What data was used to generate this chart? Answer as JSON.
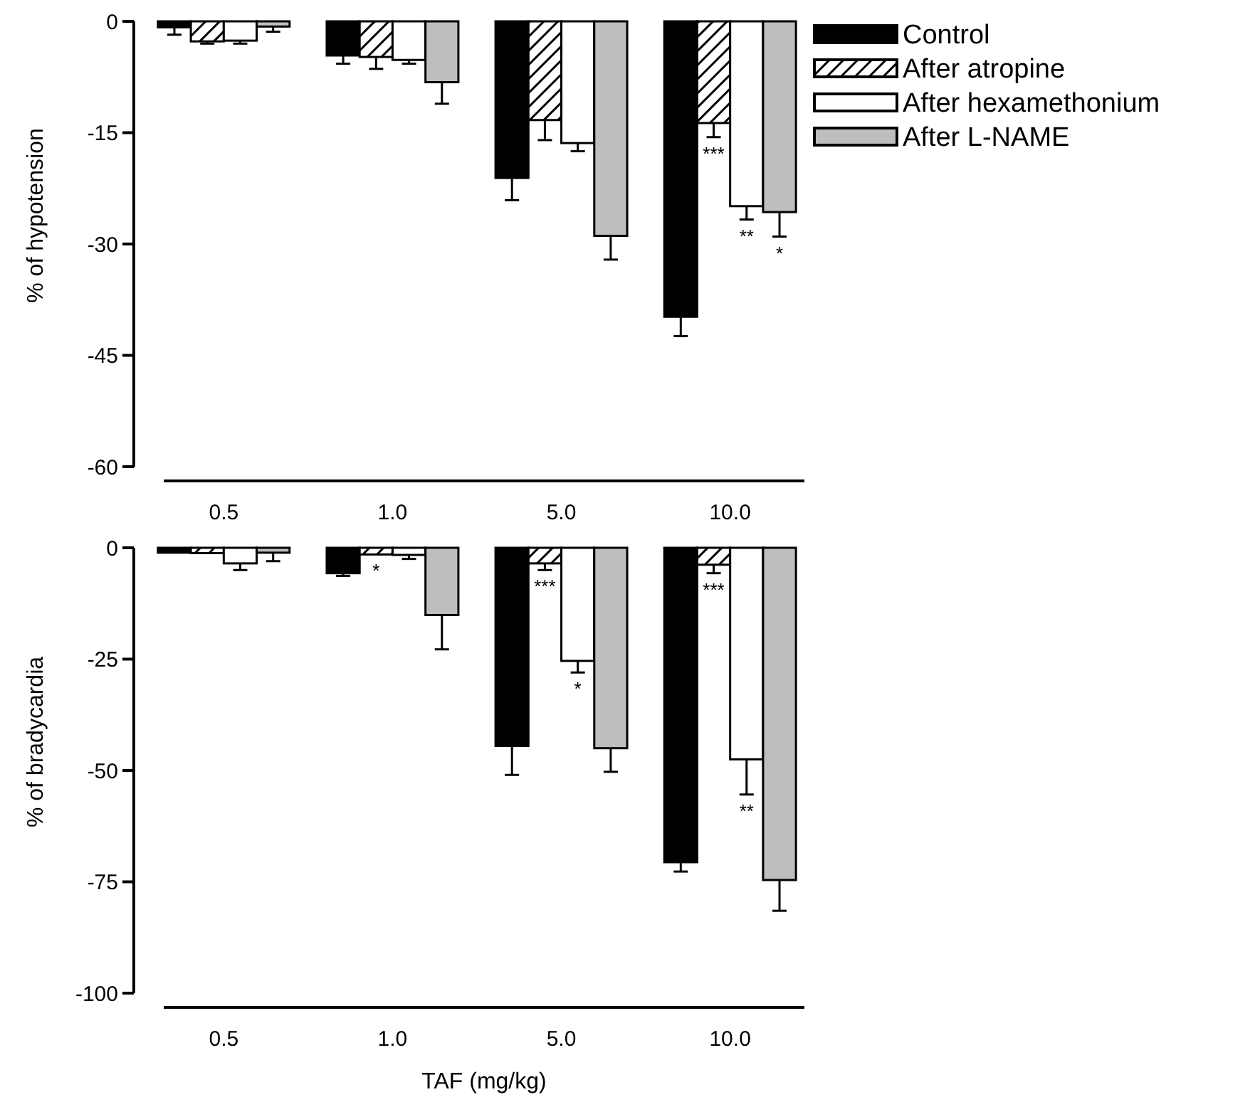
{
  "chart_data": [
    {
      "type": "bar",
      "ylabel": "% of hypotension",
      "categories": [
        "0.5",
        "1.0",
        "5.0",
        "10.0"
      ],
      "ylim": [
        -60,
        0
      ],
      "yticks": [
        0,
        -15,
        -30,
        -45,
        -60
      ],
      "legend": "top right",
      "series": [
        {
          "name": "Control",
          "color": "#000000",
          "values": [
            -0.8,
            -4.6,
            -21.1,
            -39.8
          ],
          "errors": [
            [
              -1.8,
              -0.8
            ],
            [
              -5.7,
              -4.6
            ],
            [
              -24.1,
              -21.1
            ],
            [
              -42.4,
              -39.8
            ]
          ]
        },
        {
          "name": "After atropine",
          "color": "#000000",
          "values": [
            -2.7,
            -4.8,
            -13.3,
            -13.7
          ],
          "errors": [
            [
              -3.0,
              -2.7
            ],
            [
              -6.4,
              -4.8
            ],
            [
              -16.0,
              -13.3
            ],
            [
              -15.6,
              -13.7
            ]
          ]
        },
        {
          "name": "After hexamethonium",
          "color": "#ffffff",
          "values": [
            -2.6,
            -5.2,
            -16.4,
            -24.9
          ],
          "errors": [
            [
              -3.0,
              -2.6
            ],
            [
              -5.7,
              -5.2
            ],
            [
              -17.5,
              -16.4
            ],
            [
              -26.7,
              -24.9
            ]
          ]
        },
        {
          "name": "After L-NAME",
          "color": "#bebebe",
          "values": [
            -0.7,
            -8.2,
            -28.9,
            -25.7
          ],
          "errors": [
            [
              -1.4,
              -0.7
            ],
            [
              -11.1,
              -8.2
            ],
            [
              -32.1,
              -28.9
            ],
            [
              -29.0,
              -25.7
            ]
          ]
        }
      ],
      "annotations": [
        {
          "text": "***",
          "x": "10.0",
          "y": -15.6
        },
        {
          "text": "**",
          "x": "10.0",
          "y": -24.9
        },
        {
          "text": "*",
          "x": "10.0",
          "y": -25.7
        }
      ]
    },
    {
      "type": "bar",
      "ylabel": "% of bradycardia",
      "xlabel": "TAF (mg/kg)",
      "categories": [
        "0.5",
        "1.0",
        "5.0",
        "10.0"
      ],
      "ylim": [
        -100,
        0
      ],
      "yticks": [
        0,
        -25,
        -50,
        -75,
        -100
      ],
      "series": [
        {
          "color": "#000000",
          "values": [
            -1.1,
            -5.7,
            -44.5,
            -70.6
          ],
          "errors": [
            null,
            [
              -6.3,
              -5.7
            ],
            [
              -51.0,
              -44.5
            ],
            [
              -72.7,
              -70.6
            ]
          ]
        },
        {
          "color": "#000000",
          "values": [
            -1.2,
            -1.5,
            -3.5,
            -3.8
          ],
          "errors": [
            null,
            null,
            [
              -5.0,
              -3.5
            ],
            [
              -5.7,
              -3.8
            ]
          ]
        },
        {
          "color": "#ffffff",
          "values": [
            -3.5,
            -1.6,
            -25.4,
            -47.5
          ],
          "errors": [
            [
              -5.0,
              -3.5
            ],
            [
              -2.5,
              -1.6
            ],
            [
              -28.0,
              -25.4
            ],
            [
              -55.4,
              -47.5
            ]
          ]
        },
        {
          "color": "#bebebe",
          "values": [
            -1.1,
            -15.1,
            -45.0,
            -74.6
          ],
          "errors": [
            [
              -3.0,
              -1.1
            ],
            [
              -22.8,
              -15.1
            ],
            [
              -50.3,
              -45.0
            ],
            [
              -81.5,
              -74.6
            ]
          ]
        }
      ],
      "annotations": [
        {
          "text": "*",
          "x": "1.0",
          "y": -1.5
        },
        {
          "text": "***",
          "x": "5.0",
          "y": -5.0
        },
        {
          "text": "*",
          "x": "5.0",
          "y": -25.4
        },
        {
          "text": "***",
          "x": "10.0",
          "y": -5.7
        },
        {
          "text": "**",
          "x": "10.0",
          "y": -47.5
        }
      ]
    }
  ]
}
